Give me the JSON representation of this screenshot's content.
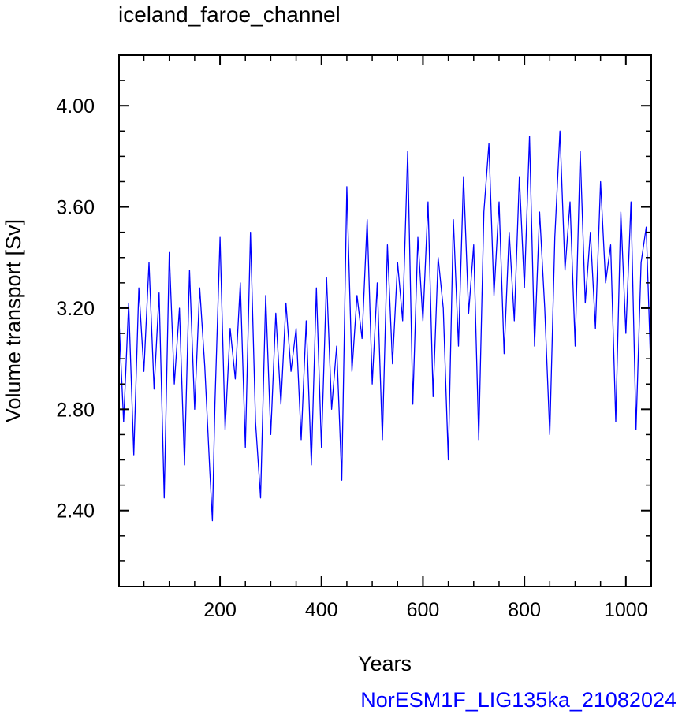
{
  "chart_data": {
    "type": "line",
    "title": "iceland_faroe_channel",
    "xlabel": "Years",
    "ylabel": "Volume transport [Sv]",
    "credit": "NorESM1F_LIG135ka_21082024",
    "xlim": [
      1,
      1050
    ],
    "ylim": [
      2.1,
      4.2
    ],
    "xticks": [
      200,
      400,
      600,
      800,
      1000
    ],
    "xtick_labels": [
      "200",
      "400",
      "600",
      "800",
      "1000"
    ],
    "yticks": [
      2.4,
      2.8,
      3.2,
      3.6,
      4.0
    ],
    "ytick_labels": [
      "2.40",
      "2.80",
      "3.20",
      "3.60",
      "4.00"
    ],
    "series": [
      {
        "color": "#0000ff",
        "x": [
          1,
          10,
          20,
          30,
          40,
          50,
          60,
          70,
          80,
          90,
          100,
          110,
          120,
          130,
          140,
          150,
          160,
          170,
          180,
          185,
          190,
          200,
          210,
          220,
          230,
          240,
          250,
          260,
          270,
          280,
          290,
          300,
          310,
          320,
          330,
          340,
          350,
          360,
          370,
          380,
          390,
          400,
          410,
          420,
          430,
          440,
          450,
          460,
          470,
          480,
          490,
          500,
          510,
          520,
          530,
          540,
          550,
          560,
          570,
          580,
          590,
          600,
          610,
          620,
          630,
          640,
          650,
          660,
          670,
          680,
          690,
          700,
          710,
          720,
          730,
          740,
          750,
          760,
          770,
          780,
          790,
          800,
          810,
          820,
          830,
          840,
          850,
          860,
          870,
          880,
          890,
          900,
          910,
          920,
          930,
          940,
          950,
          960,
          970,
          980,
          990,
          1000,
          1010,
          1020,
          1030,
          1040,
          1050
        ],
        "y": [
          3.15,
          2.75,
          3.22,
          2.62,
          3.28,
          2.95,
          3.38,
          2.88,
          3.26,
          2.45,
          3.42,
          2.9,
          3.2,
          2.58,
          3.35,
          2.8,
          3.28,
          2.97,
          2.55,
          2.36,
          2.82,
          3.48,
          2.72,
          3.12,
          2.92,
          3.3,
          2.65,
          3.5,
          2.75,
          2.45,
          3.25,
          2.7,
          3.18,
          2.82,
          3.22,
          2.95,
          3.12,
          2.68,
          3.15,
          2.58,
          3.28,
          2.65,
          3.32,
          2.8,
          3.05,
          2.52,
          3.68,
          2.95,
          3.25,
          3.08,
          3.55,
          2.9,
          3.3,
          2.68,
          3.45,
          2.98,
          3.38,
          3.15,
          3.82,
          2.82,
          3.48,
          3.15,
          3.62,
          2.85,
          3.4,
          3.2,
          2.6,
          3.55,
          3.05,
          3.72,
          3.18,
          3.45,
          2.68,
          3.58,
          3.85,
          3.25,
          3.62,
          3.02,
          3.5,
          3.15,
          3.72,
          3.28,
          3.88,
          3.05,
          3.58,
          3.2,
          2.7,
          3.48,
          3.9,
          3.35,
          3.62,
          3.05,
          3.82,
          3.22,
          3.5,
          3.12,
          3.7,
          3.3,
          3.45,
          2.75,
          3.58,
          3.1,
          3.62,
          2.72,
          3.38,
          3.52,
          2.9
        ]
      }
    ]
  }
}
